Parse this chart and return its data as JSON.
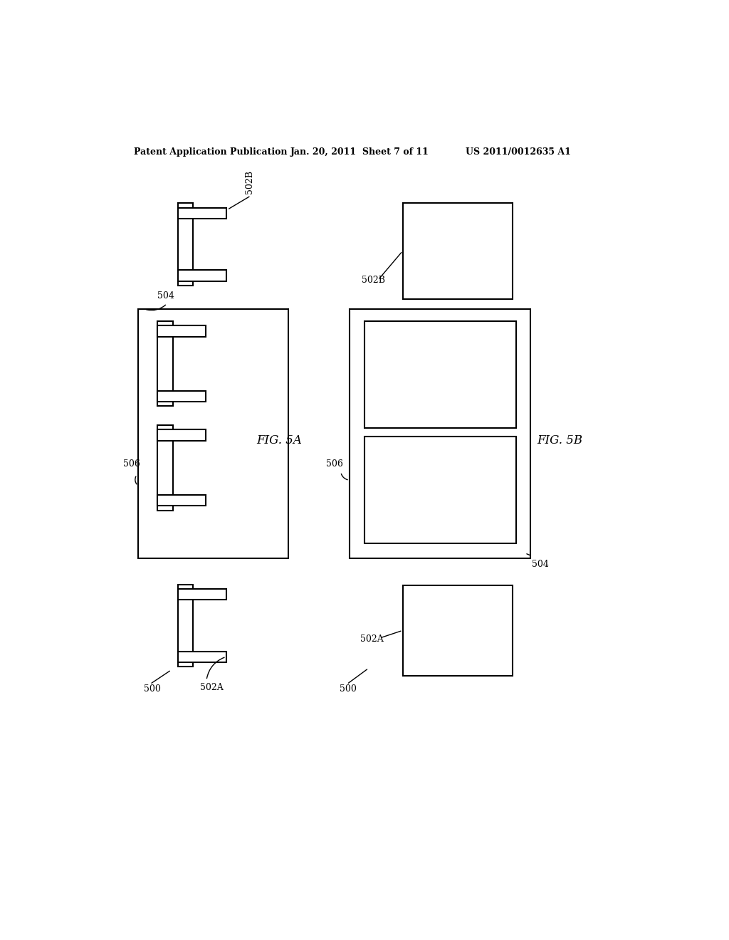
{
  "bg_color": "#ffffff",
  "header_left": "Patent Application Publication",
  "header_center": "Jan. 20, 2011  Sheet 7 of 11",
  "header_right": "US 2011/0012635 A1",
  "fig5a_label": "FIG. 5A",
  "fig5b_label": "FIG. 5B"
}
